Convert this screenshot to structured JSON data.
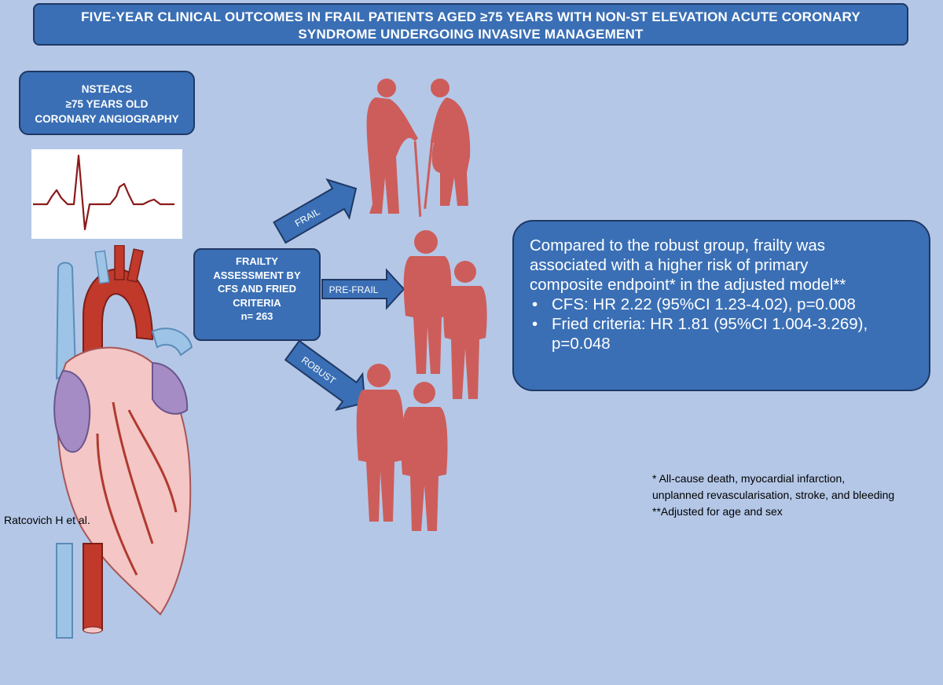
{
  "title": {
    "line1": "FIVE-YEAR CLINICAL OUTCOMES IN FRAIL PATIENTS AGED ≥75 YEARS WITH NON-ST ELEVATION ACUTE CORONARY",
    "line2": "SYNDROME UNDERGOING INVASIVE MANAGEMENT"
  },
  "population": {
    "line1": "NSTEACS",
    "line2": "≥75 YEARS OLD",
    "line3": "CORONARY ANGIOGRAPHY"
  },
  "assessment": {
    "line1": "FRAILTY",
    "line2": "ASSESSMENT BY",
    "line3": "CFS AND FRIED",
    "line4": "CRITERIA",
    "line5": "n= 263"
  },
  "groups": {
    "frail": "FRAIL",
    "prefrail": "PRE-FRAIL",
    "robust": "ROBUST"
  },
  "result": {
    "line1": "Compared to the robust group, frailty was",
    "line2": "associated with a higher risk of primary",
    "line3": "composite endpoint* in the adjusted model**",
    "bullet1": "CFS: HR 2.22 (95%CI 1.23-4.02), p=0.008",
    "bullet2a": "Fried criteria: HR 1.81 (95%CI 1.004-3.269),",
    "bullet2b": "p=0.048"
  },
  "footnotes": {
    "line1": "* All-cause death, myocardial infarction,",
    "line2": "unplanned revascularisation, stroke, and bleeding",
    "line3": "**Adjusted for age and sex"
  },
  "author": "Ratcovich H et al.",
  "colors": {
    "background": "#b4c7e7",
    "box": "#3a6fb5",
    "border": "#1f3864",
    "figure": "#cd5d5a",
    "ecg": "#8b1a1a"
  }
}
